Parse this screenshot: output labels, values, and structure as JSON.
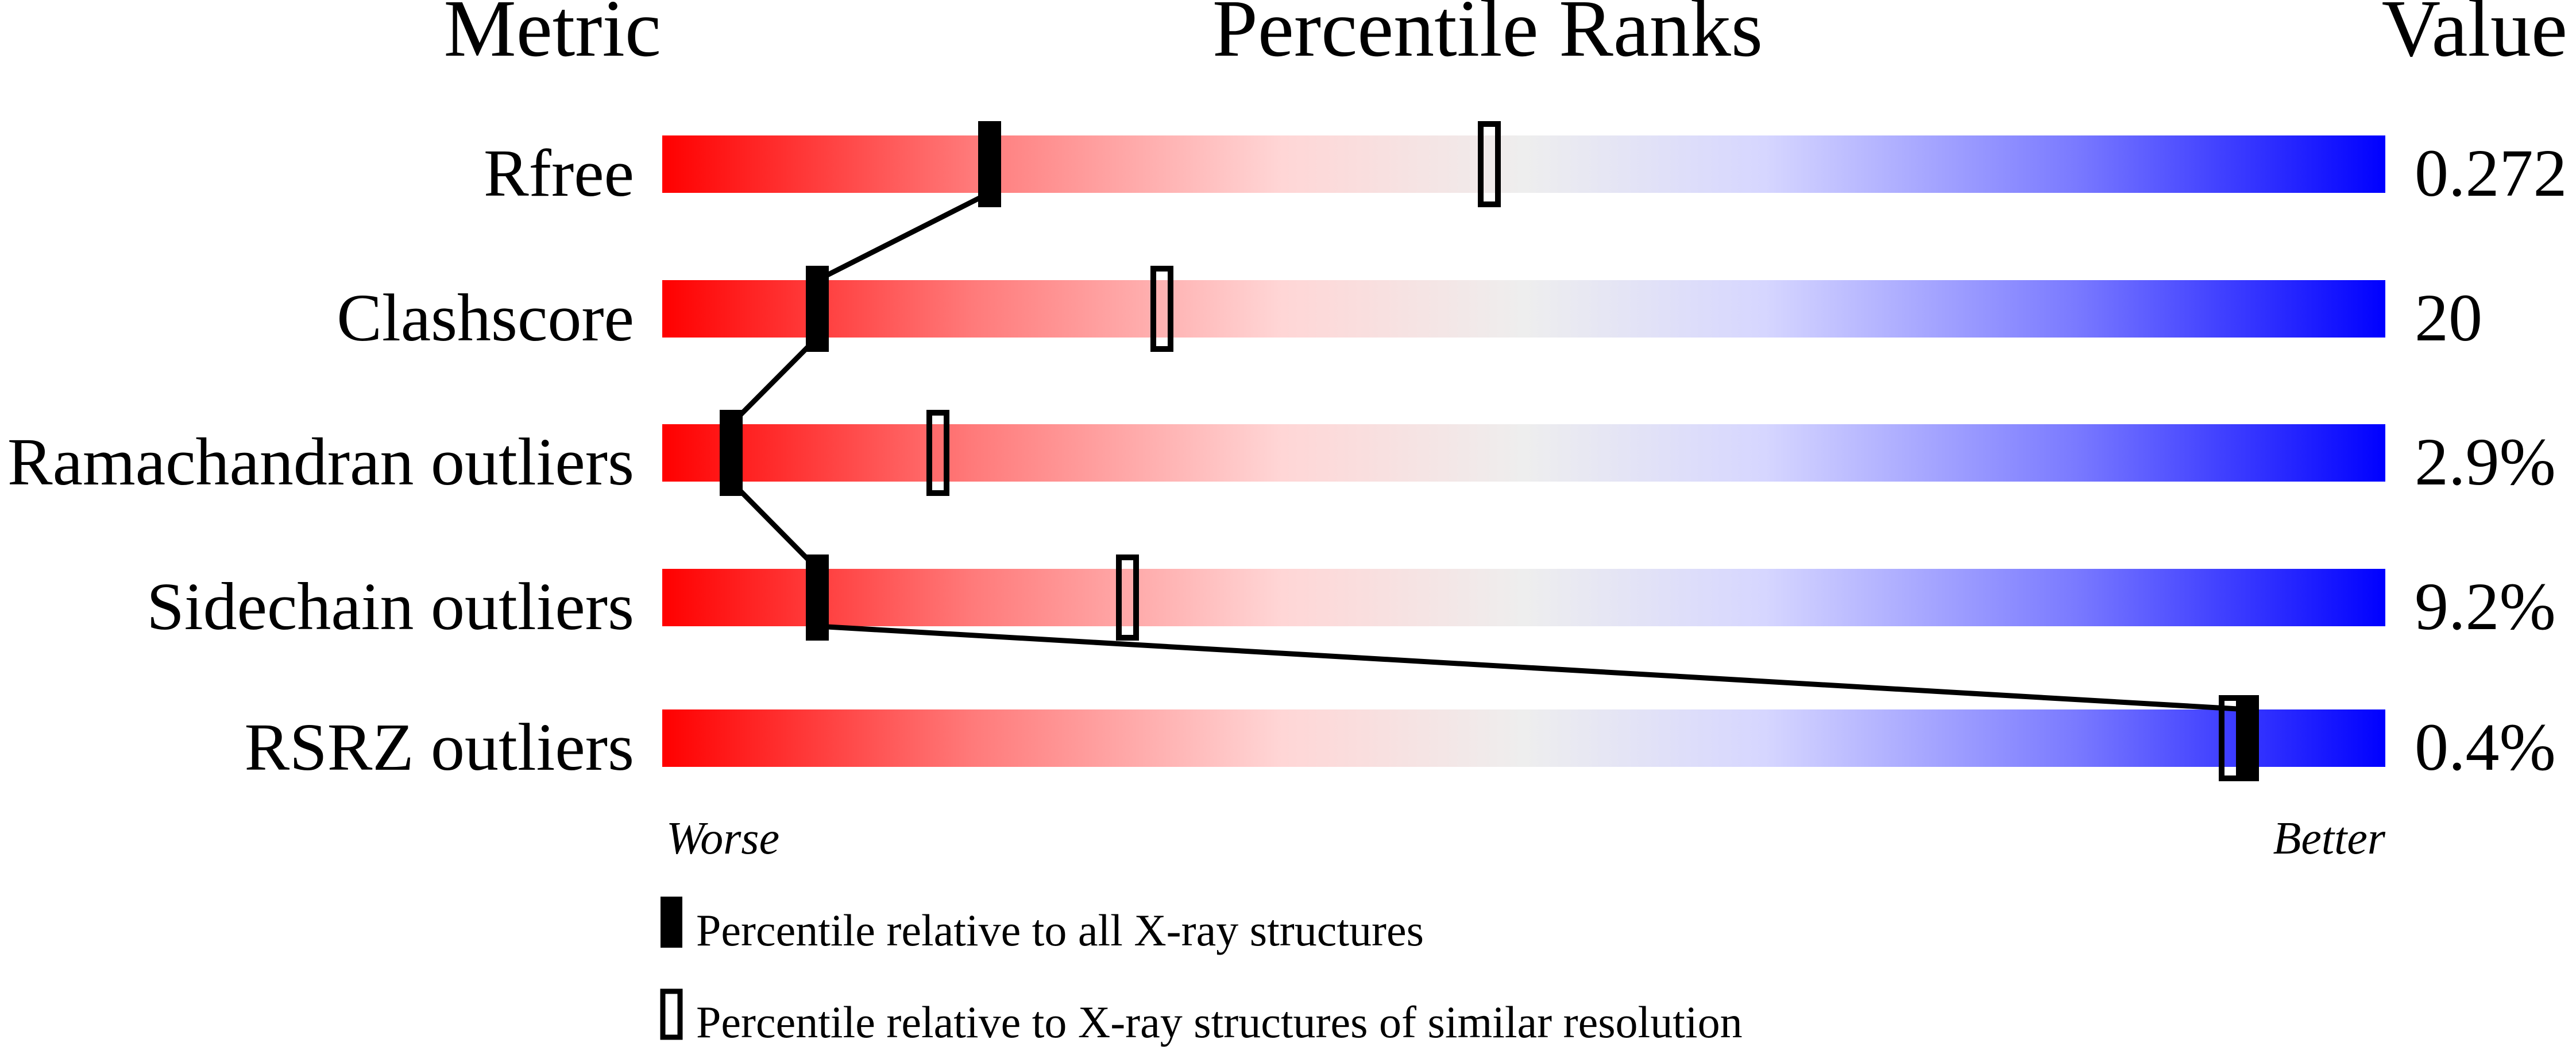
{
  "chart_data": {
    "type": "percentile-slider",
    "headers": {
      "metric": "Metric",
      "percentile": "Percentile Ranks",
      "value": "Value"
    },
    "xlim": [
      0,
      100
    ],
    "axis_labels": {
      "left": "Worse",
      "right": "Better"
    },
    "metrics": [
      {
        "name": "Rfree",
        "value": "0.272",
        "percentile_all": 19,
        "percentile_similar": 48
      },
      {
        "name": "Clashscore",
        "value": "20",
        "percentile_all": 9,
        "percentile_similar": 29
      },
      {
        "name": "Ramachandran outliers",
        "value": "2.9%",
        "percentile_all": 4,
        "percentile_similar": 16
      },
      {
        "name": "Sidechain outliers",
        "value": "9.2%",
        "percentile_all": 9,
        "percentile_similar": 27
      },
      {
        "name": "RSRZ outliers",
        "value": "0.4%",
        "percentile_all": 92,
        "percentile_similar": 91
      }
    ],
    "legend": {
      "all": "Percentile relative to all X-ray structures",
      "similar": "Percentile relative to X-ray structures of similar resolution"
    },
    "colors": {
      "worse": "#ff0000",
      "middle": "#eeeeee",
      "better": "#0000ff",
      "marker": "#000000"
    }
  }
}
